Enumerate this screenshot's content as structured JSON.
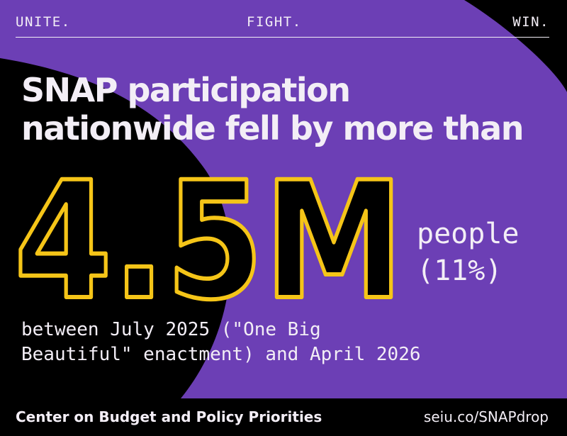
{
  "slogans": [
    "UNITE.",
    "FIGHT.",
    "WIN."
  ],
  "headline": {
    "line1": "SNAP participation",
    "line2": "nationwide fell by more than"
  },
  "stat": {
    "value": "4.5M",
    "unit_line1": "people",
    "unit_line2": "(11%)"
  },
  "detail": {
    "line1": "between July 2025 (\"One Big",
    "line2": "Beautiful\" enactment) and April 2026"
  },
  "footer": {
    "source": "Center on Budget and Policy Priorities",
    "link": "seiu.co/SNAPdrop"
  },
  "colors": {
    "purple": "#6c3fb5",
    "black": "#000000",
    "yellow": "#f5c518",
    "text": "#f3eef6"
  }
}
